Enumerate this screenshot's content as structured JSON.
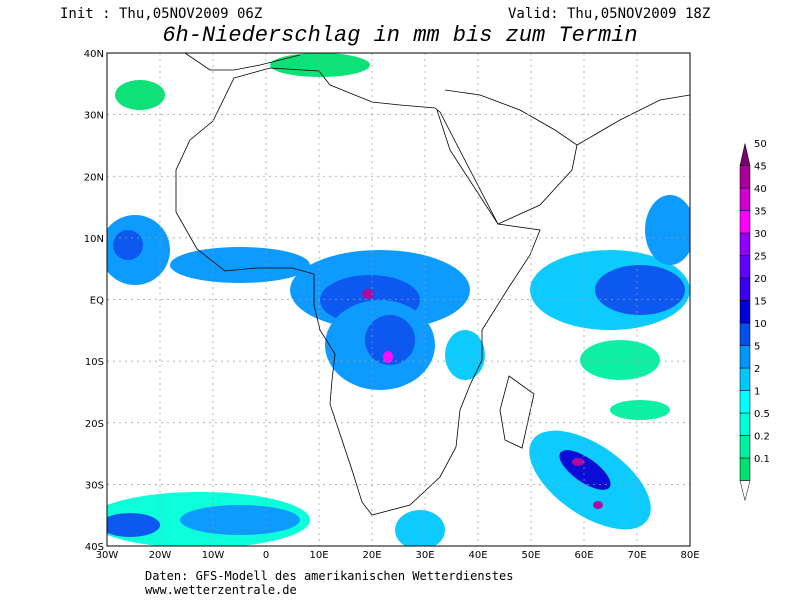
{
  "header": {
    "init": "Init : Thu,05NOV2009 06Z",
    "valid": "Valid: Thu,05NOV2009 18Z",
    "title": "6h-Niederschlag in mm bis zum Termin"
  },
  "map": {
    "lat_labels": [
      "40N",
      "30N",
      "20N",
      "10N",
      "EQ",
      "10S",
      "20S",
      "30S",
      "40S"
    ],
    "lon_labels": [
      "30W",
      "20W",
      "10W",
      "0",
      "10E",
      "20E",
      "30E",
      "40E",
      "50E",
      "60E",
      "70E",
      "80E"
    ]
  },
  "legend": {
    "levels": [
      "0.1",
      "0.2",
      "0.5",
      "1",
      "2",
      "5",
      "10",
      "15",
      "20",
      "25",
      "30",
      "35",
      "40",
      "45",
      "50"
    ],
    "colors": [
      "#00e070",
      "#00f0a0",
      "#00ffd8",
      "#00ffff",
      "#00c8ff",
      "#0096ff",
      "#0050f0",
      "#0000d8",
      "#3c00f0",
      "#6400ff",
      "#9000ff",
      "#ff00ff",
      "#d000d0",
      "#a80098",
      "#780070"
    ]
  },
  "footer": {
    "source": "Daten: GFS-Modell des amerikanischen Wetterdienstes",
    "url": "www.wetterzentrale.de"
  }
}
